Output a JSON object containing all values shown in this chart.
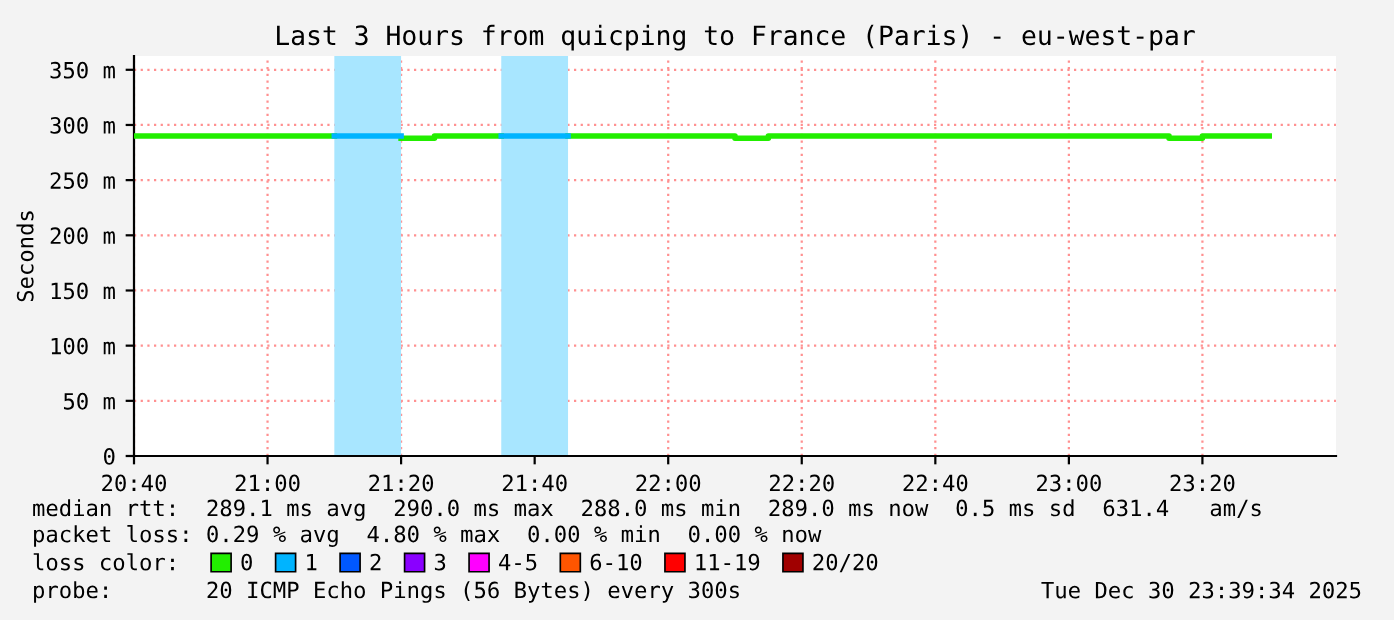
{
  "chart_data": {
    "type": "step",
    "title": "Last 3 Hours from quicping to France (Paris) - eu-west-par",
    "ylabel": "Seconds",
    "xlim": [
      20.6667,
      23.6667
    ],
    "xticks": [
      {
        "value": 20.6667,
        "label": "20:40"
      },
      {
        "value": 21.0,
        "label": "21:00"
      },
      {
        "value": 21.3333,
        "label": "21:20"
      },
      {
        "value": 21.6667,
        "label": "21:40"
      },
      {
        "value": 22.0,
        "label": "22:00"
      },
      {
        "value": 22.3333,
        "label": "22:20"
      },
      {
        "value": 22.6667,
        "label": "22:40"
      },
      {
        "value": 23.0,
        "label": "23:00"
      },
      {
        "value": 23.3333,
        "label": "23:20"
      }
    ],
    "ylim": [
      0,
      362.5
    ],
    "yticks": [
      {
        "value": 0,
        "label": "0"
      },
      {
        "value": 50,
        "label": "50 m"
      },
      {
        "value": 100,
        "label": "100 m"
      },
      {
        "value": 150,
        "label": "150 m"
      },
      {
        "value": 200,
        "label": "200 m"
      },
      {
        "value": 250,
        "label": "250 m"
      },
      {
        "value": 300,
        "label": "300 m"
      },
      {
        "value": 350,
        "label": "350 m"
      }
    ],
    "grid": true,
    "legend": "bottom",
    "legend_title": "loss color:",
    "bands": [
      {
        "axis": "x",
        "from": 21.1667,
        "to": 21.3333,
        "color": "#a8e6ff"
      },
      {
        "axis": "x",
        "from": 21.5833,
        "to": 21.75,
        "color": "#a8e6ff"
      }
    ],
    "series": [
      {
        "name": "0",
        "color": "#22ee00",
        "x": [
          20.6667,
          20.75,
          20.8333,
          20.9167,
          21.0,
          21.0833,
          21.1667,
          21.25,
          21.3333,
          21.4167,
          21.5,
          21.5833,
          21.6667,
          21.75,
          21.8333,
          21.9167,
          22.0,
          22.0833,
          22.1667,
          22.25,
          22.3333,
          22.4167,
          22.5,
          22.5833,
          22.6667,
          22.75,
          22.8333,
          22.9167,
          23.0,
          23.0833,
          23.1667,
          23.25,
          23.3333,
          23.4167,
          23.5
        ],
        "values": [
          290,
          290,
          290,
          290,
          290,
          290,
          null,
          null,
          288,
          290,
          290,
          null,
          null,
          290,
          290,
          290,
          290,
          290,
          288,
          290,
          290,
          290,
          290,
          290,
          290,
          290,
          290,
          290,
          290,
          290,
          290,
          288,
          290,
          290,
          290
        ]
      },
      {
        "name": "1",
        "type": "line",
        "color": "#00b4ff",
        "x": [
          21.1667,
          21.3333,
          null,
          21.5833,
          21.75
        ],
        "values": [
          290,
          290,
          null,
          290,
          290
        ]
      },
      {
        "name": "2",
        "color": "#0058ff"
      },
      {
        "name": "3",
        "color": "#8a00ff"
      },
      {
        "name": "4-5",
        "color": "#ff00ff"
      },
      {
        "name": "6-10",
        "color": "#ff5500"
      },
      {
        "name": "11-19",
        "color": "#ff0000"
      },
      {
        "name": "20/20",
        "color": "#a00000"
      }
    ],
    "annotations": [
      "median rtt:  289.1 ms avg  290.0 ms max  288.0 ms min  289.0 ms now  0.5 ms sd  631.4   am/s",
      "packet loss: 0.29 % avg  4.80 % max  0.00 % min  0.00 % now",
      "probe:       20 ICMP Echo Pings (56 Bytes) every 300s",
      "Tue Dec 30 23:39:34 2025"
    ]
  }
}
